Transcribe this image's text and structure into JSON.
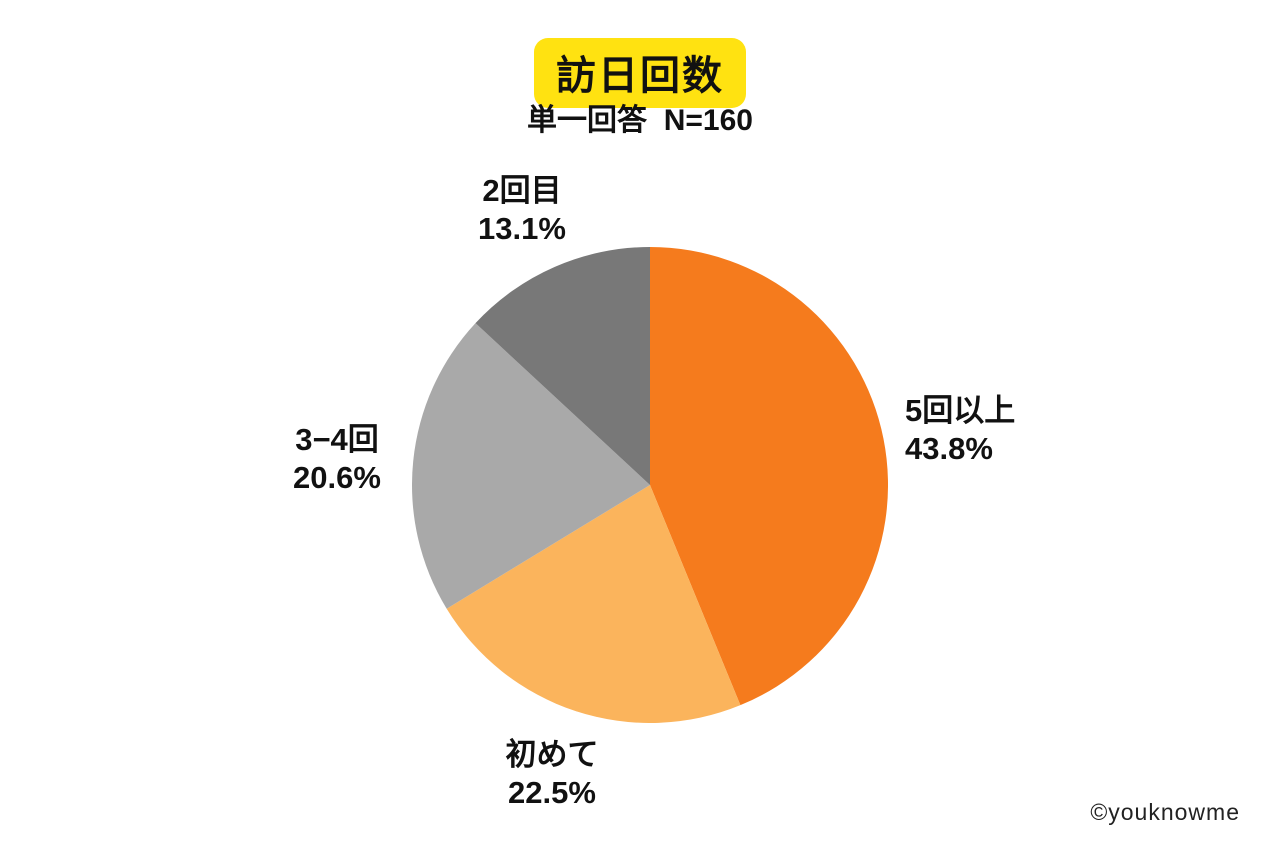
{
  "page": {
    "background_color": "#ffffff",
    "watermark": "©youknowme"
  },
  "header": {
    "title": "訪日回数",
    "title_highlight_color": "#FFE211",
    "subtitle": "単一回答  N=160"
  },
  "chart_data": {
    "type": "pie",
    "title": "訪日回数",
    "subtitle": "単一回答  N=160",
    "sample_size": 160,
    "start_angle_deg": 0,
    "direction": "clockwise",
    "slices": [
      {
        "id": "five-or-more",
        "label": "5回以上",
        "value_pct": 43.8,
        "pct_label": "43.8%",
        "color": "#F57B1D"
      },
      {
        "id": "first-time",
        "label": "初めて",
        "value_pct": 22.5,
        "pct_label": "22.5%",
        "color": "#FBB45C"
      },
      {
        "id": "three-four",
        "label": "3−4回",
        "value_pct": 20.6,
        "pct_label": "20.6%",
        "color": "#A9A9A9"
      },
      {
        "id": "second-time",
        "label": "2回目",
        "value_pct": 13.1,
        "pct_label": "13.1%",
        "color": "#787878"
      }
    ]
  }
}
